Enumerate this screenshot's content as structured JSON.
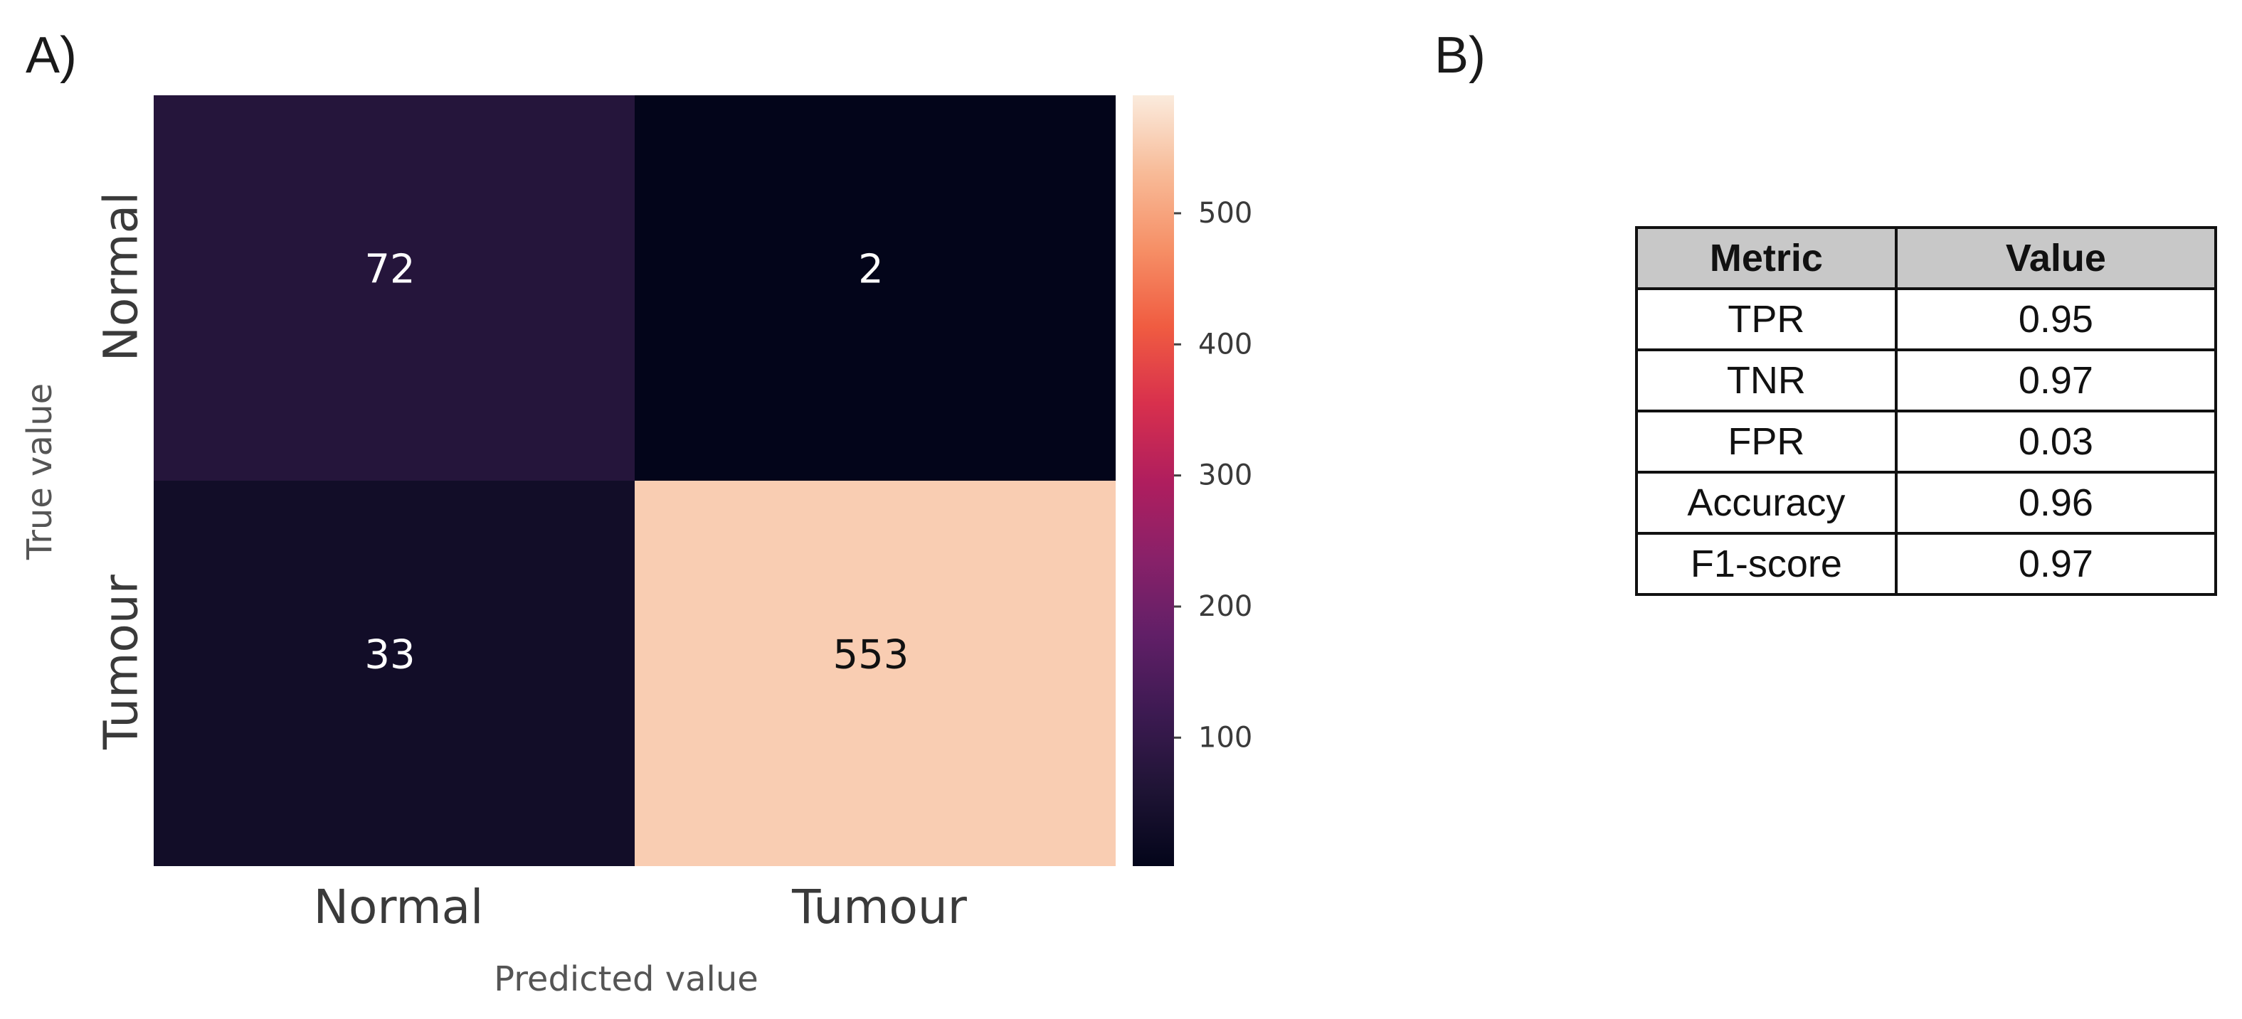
{
  "panel_a_label": "A)",
  "panel_b_label": "B)",
  "chart_data": {
    "type": "heatmap",
    "xlabel": "Predicted value",
    "ylabel": "True value",
    "x_categories": [
      "Normal",
      "Tumour"
    ],
    "y_categories": [
      "Normal",
      "Tumour"
    ],
    "values": [
      [
        72,
        2
      ],
      [
        33,
        553
      ]
    ],
    "colorbar": {
      "ticks": [
        100,
        200,
        300,
        400,
        500
      ],
      "range": [
        2,
        590
      ],
      "colormap": "rocket"
    }
  },
  "metrics_table": {
    "headers": [
      "Metric",
      "Value"
    ],
    "rows": [
      [
        "TPR",
        "0.95"
      ],
      [
        "TNR",
        "0.97"
      ],
      [
        "FPR",
        "0.03"
      ],
      [
        "Accuracy",
        "0.96"
      ],
      [
        "F1-score",
        "0.97"
      ]
    ]
  }
}
